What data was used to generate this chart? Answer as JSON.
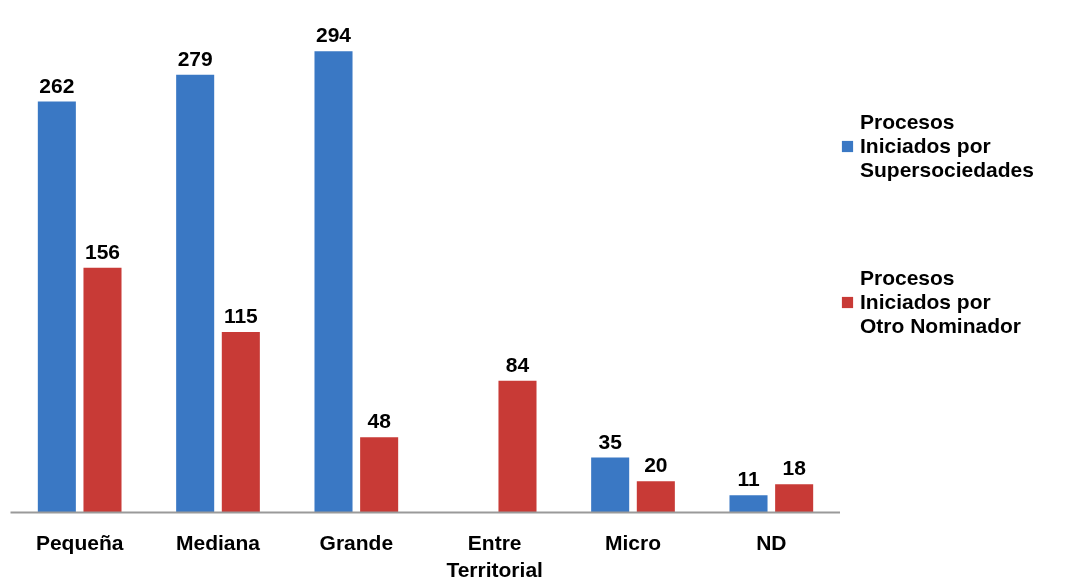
{
  "chart_data": {
    "type": "bar",
    "categories": [
      "Pequeña",
      "Mediana",
      "Grande",
      "Entre Territorial",
      "Micro",
      "ND"
    ],
    "series": [
      {
        "name": "Procesos Iniciados por Supersociedades",
        "color": "#3a78c4",
        "values": [
          262,
          279,
          294,
          null,
          35,
          11
        ]
      },
      {
        "name": "Procesos Iniciados por Otro Nominador",
        "color": "#c83a36",
        "values": [
          156,
          115,
          48,
          84,
          20,
          18
        ]
      }
    ],
    "tick_labels": "x",
    "data_labels": true,
    "legend": "right"
  }
}
